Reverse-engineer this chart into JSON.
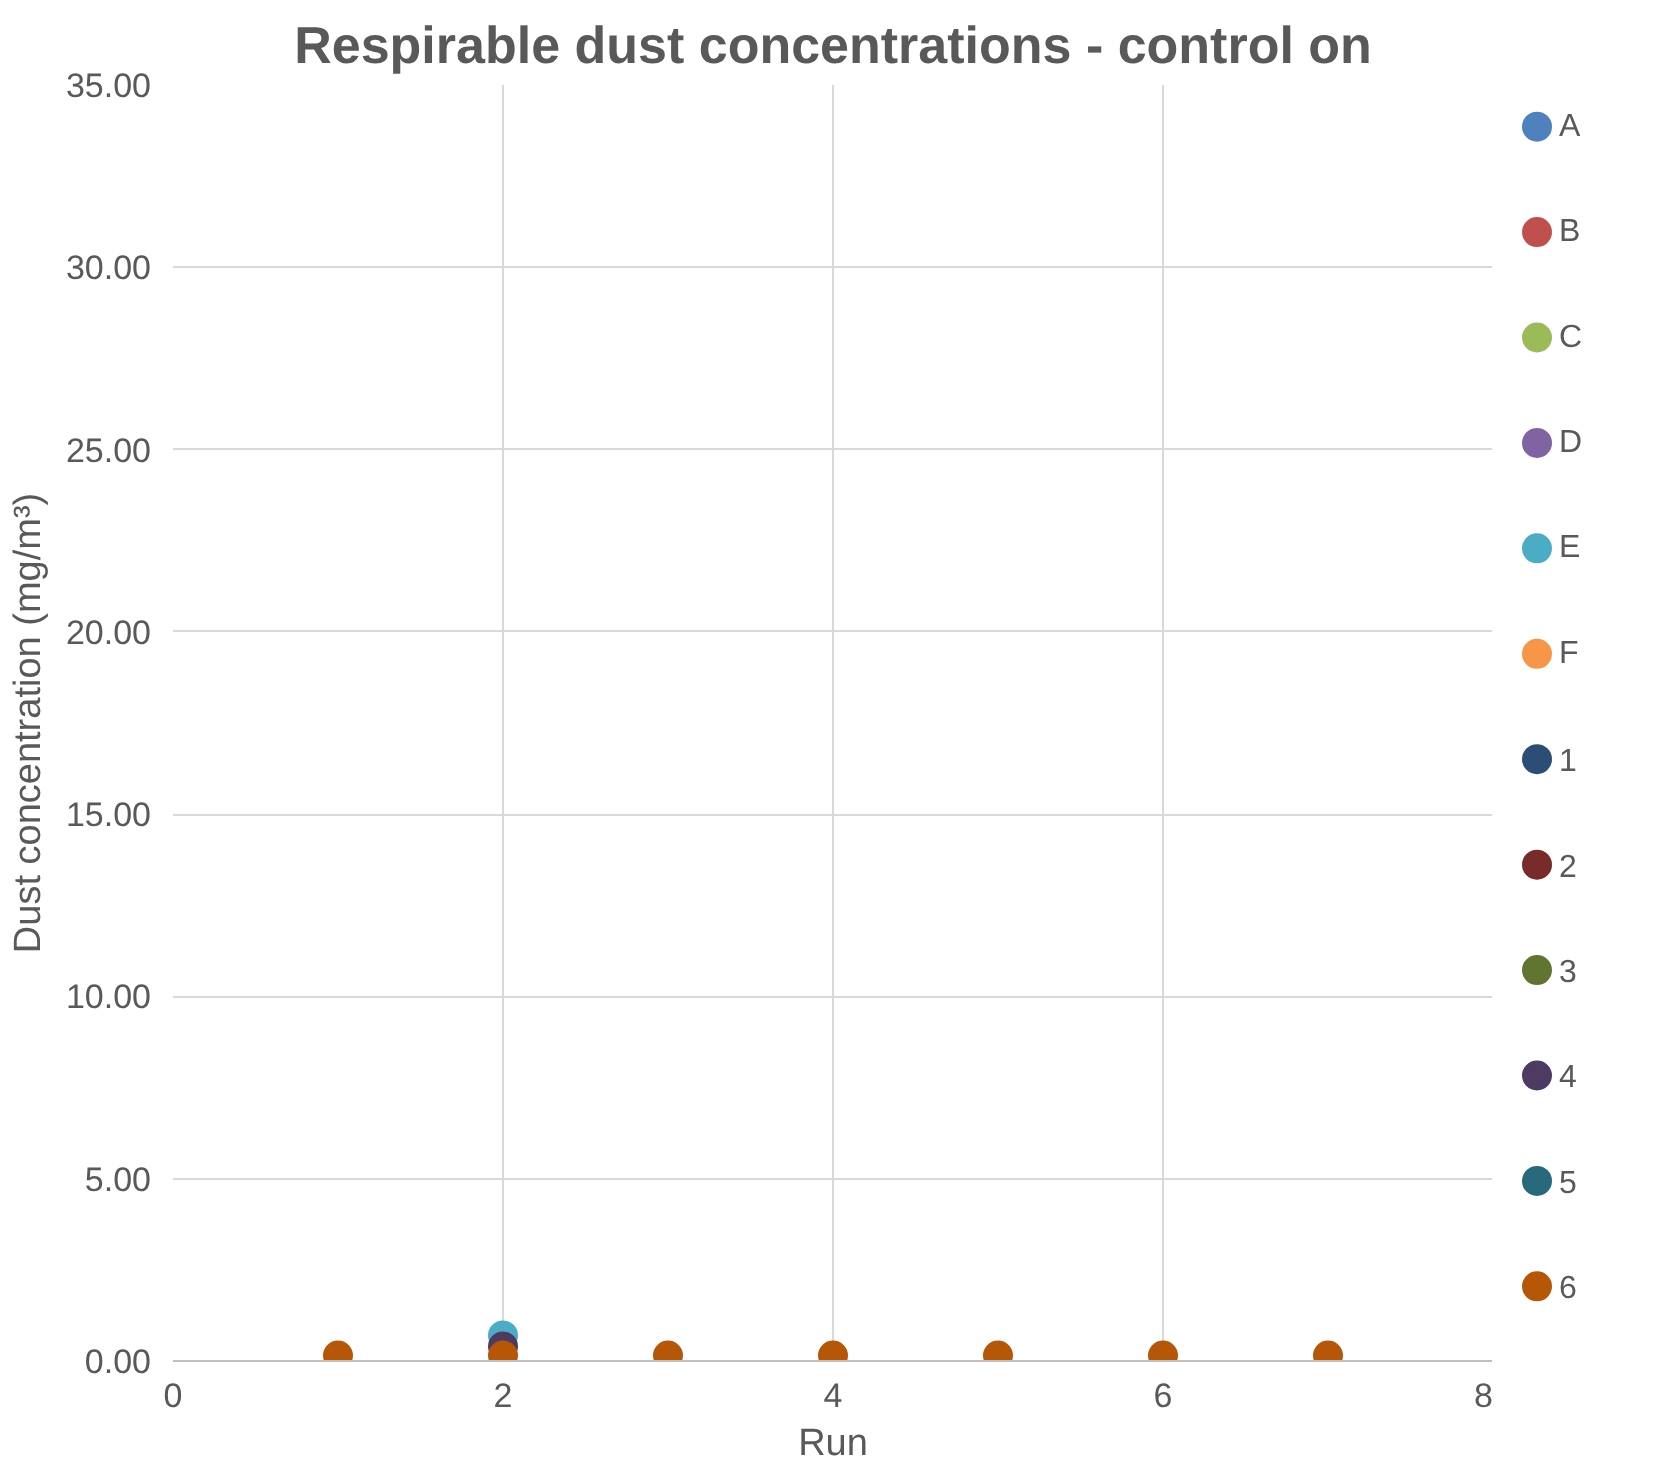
{
  "chart_data": {
    "type": "scatter",
    "title": "Respirable dust concentrations - control on",
    "xlabel": "Run",
    "ylabel": "Dust concentration (mg/m³)",
    "x": [
      1,
      2,
      3,
      4,
      5,
      6,
      7
    ],
    "xlim": [
      0,
      8
    ],
    "xticks": [
      0,
      2,
      4,
      6,
      8
    ],
    "ylim": [
      0,
      35
    ],
    "yticks": [
      {
        "value": 0,
        "label": "0.00"
      },
      {
        "value": 5,
        "label": "5.00"
      },
      {
        "value": 10,
        "label": "10.00"
      },
      {
        "value": 15,
        "label": "15.00"
      },
      {
        "value": 20,
        "label": "20.00"
      },
      {
        "value": 25,
        "label": "25.00"
      },
      {
        "value": 30,
        "label": "30.00"
      },
      {
        "value": 35,
        "label": "35.00"
      }
    ],
    "grid": true,
    "legend": "right",
    "marker": "circle",
    "series": [
      {
        "name": "A",
        "color": "#4f81bd",
        "values": [
          null,
          null,
          null,
          null,
          null,
          null,
          null
        ]
      },
      {
        "name": "B",
        "color": "#c0504d",
        "values": [
          null,
          null,
          null,
          null,
          null,
          null,
          null
        ]
      },
      {
        "name": "C",
        "color": "#9bbb59",
        "values": [
          null,
          null,
          null,
          null,
          null,
          null,
          null
        ]
      },
      {
        "name": "D",
        "color": "#8064a2",
        "values": [
          null,
          null,
          null,
          null,
          null,
          null,
          null
        ]
      },
      {
        "name": "E",
        "color": "#4bacc6",
        "values": [
          null,
          0.7,
          null,
          null,
          null,
          null,
          null
        ]
      },
      {
        "name": "F",
        "color": "#f79646",
        "values": [
          null,
          null,
          null,
          null,
          null,
          null,
          null
        ]
      },
      {
        "name": "1",
        "color": "#2c4d75",
        "values": [
          null,
          null,
          null,
          null,
          null,
          null,
          null
        ]
      },
      {
        "name": "2",
        "color": "#772c2a",
        "values": [
          null,
          null,
          null,
          null,
          null,
          null,
          null
        ]
      },
      {
        "name": "3",
        "color": "#5f7530",
        "values": [
          null,
          null,
          null,
          null,
          null,
          null,
          null
        ]
      },
      {
        "name": "4",
        "color": "#4d3b62",
        "values": [
          null,
          0.4,
          null,
          null,
          null,
          null,
          null
        ]
      },
      {
        "name": "5",
        "color": "#276a7c",
        "values": [
          null,
          null,
          null,
          null,
          null,
          null,
          null
        ]
      },
      {
        "name": "6",
        "color": "#b65708",
        "values": [
          0.15,
          0.15,
          0.15,
          0.15,
          0.15,
          0.15,
          0.15
        ]
      }
    ]
  }
}
